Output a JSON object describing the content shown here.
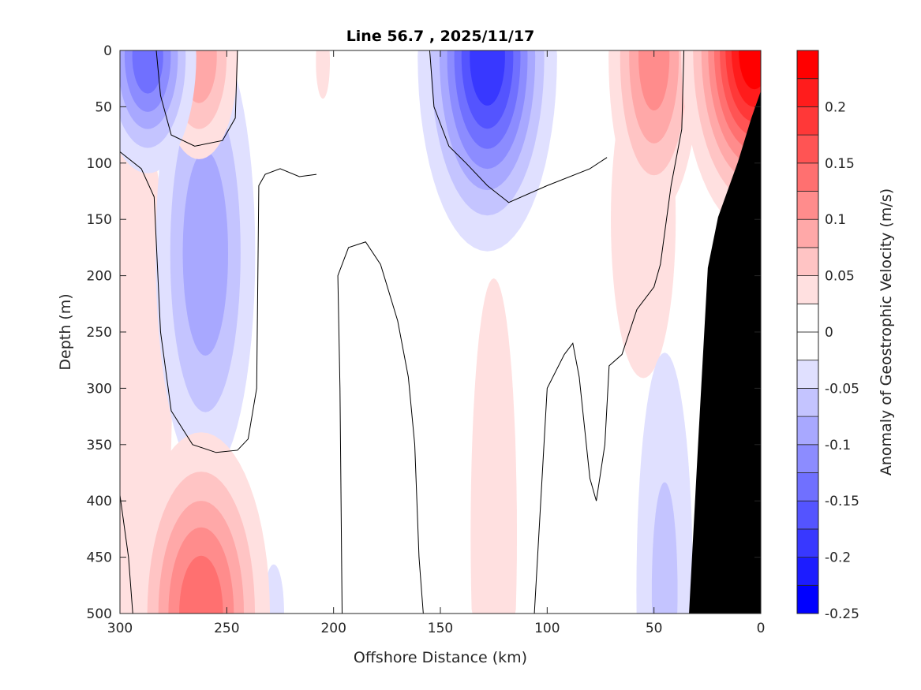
{
  "chart_data": {
    "type": "heatmap",
    "subtype": "filled-contour",
    "title": "Line 56.7 , 2025/11/17",
    "xlabel": "Offshore Distance (km)",
    "ylabel": "Depth (m)",
    "xlim": [
      300,
      0
    ],
    "ylim": [
      0,
      500
    ],
    "x_reversed": true,
    "y_reversed": true,
    "xticks": [
      "300",
      "250",
      "200",
      "150",
      "100",
      "50",
      "0"
    ],
    "yticks": [
      "0",
      "50",
      "100",
      "150",
      "200",
      "250",
      "300",
      "350",
      "400",
      "450",
      "500"
    ],
    "colorbar": {
      "label": "Anomaly of Geostrophic Velocity (m/s)",
      "range": [
        -0.25,
        0.25
      ],
      "step": 0.025,
      "ticks": [
        "0.2",
        "0.15",
        "0.1",
        "0.05",
        "0",
        "-0.05",
        "-0.1",
        "-0.15",
        "-0.2",
        "-0.25"
      ],
      "colormap": "blue-white-red",
      "positive_color": "#ff0000",
      "negative_color": "#0000ff"
    },
    "anomaly_cores": [
      {
        "x_km": 295,
        "depth_m": 300,
        "value": 0.04,
        "sx_km": 20,
        "sy_m": 260
      },
      {
        "x_km": 205,
        "depth_m": 10,
        "value": 0.035,
        "sx_km": 4,
        "sy_m": 40
      },
      {
        "x_km": 228,
        "depth_m": 500,
        "value": -0.04,
        "sx_km": 5,
        "sy_m": 45
      },
      {
        "x_km": 125,
        "depth_m": 430,
        "value": 0.045,
        "sx_km": 10,
        "sy_m": 210
      },
      {
        "x_km": 55,
        "depth_m": 150,
        "value": 0.045,
        "sx_km": 14,
        "sy_m": 130
      },
      {
        "x_km": 45,
        "depth_m": 480,
        "value": -0.06,
        "sx_km": 10,
        "sy_m": 160
      },
      {
        "x_km": 260,
        "depth_m": 180,
        "value": -0.1,
        "sx_km": 14,
        "sy_m": 120
      },
      {
        "x_km": 263,
        "depth_m": 5,
        "value": 0.1,
        "sx_km": 11,
        "sy_m": 55
      },
      {
        "x_km": 50,
        "depth_m": 5,
        "value": 0.12,
        "sx_km": 12,
        "sy_m": 80
      },
      {
        "x_km": 287,
        "depth_m": 5,
        "value": -0.15,
        "sx_km": 12,
        "sy_m": 55
      },
      {
        "x_km": 262,
        "depth_m": 500,
        "value": 0.15,
        "sx_km": 17,
        "sy_m": 85
      },
      {
        "x_km": 128,
        "depth_m": 5,
        "value": -0.2,
        "sx_km": 16,
        "sy_m": 85
      },
      {
        "x_km": 3,
        "depth_m": 0,
        "value": 0.25,
        "sx_km": 16,
        "sy_m": 75
      }
    ],
    "zero_contours": [
      [
        [
          300,
          90
        ],
        [
          290,
          105
        ],
        [
          284,
          130
        ],
        [
          281,
          250
        ],
        [
          276,
          320
        ],
        [
          266,
          350
        ],
        [
          255,
          357
        ],
        [
          245,
          355
        ],
        [
          240,
          345
        ],
        [
          236,
          300
        ],
        [
          235,
          120
        ],
        [
          232,
          110
        ],
        [
          225,
          105
        ],
        [
          216,
          112
        ],
        [
          208,
          110
        ]
      ],
      [
        [
          300,
          395
        ],
        [
          296,
          450
        ],
        [
          294,
          500
        ]
      ],
      [
        [
          196,
          500
        ],
        [
          197,
          300
        ],
        [
          198,
          200
        ],
        [
          193,
          175
        ],
        [
          185,
          170
        ],
        [
          178,
          190
        ],
        [
          170,
          240
        ],
        [
          165,
          290
        ],
        [
          162,
          350
        ],
        [
          160,
          450
        ],
        [
          158,
          500
        ]
      ],
      [
        [
          106,
          500
        ],
        [
          103,
          400
        ],
        [
          100,
          300
        ],
        [
          92,
          270
        ],
        [
          88,
          260
        ],
        [
          85,
          290
        ],
        [
          80,
          380
        ],
        [
          77,
          400
        ],
        [
          73,
          350
        ],
        [
          71,
          280
        ],
        [
          65,
          270
        ],
        [
          58,
          230
        ],
        [
          50,
          210
        ],
        [
          47,
          190
        ],
        [
          42,
          120
        ],
        [
          37,
          70
        ],
        [
          36,
          0
        ]
      ],
      [
        [
          155,
          0
        ],
        [
          153,
          50
        ],
        [
          146,
          85
        ],
        [
          138,
          100
        ],
        [
          128,
          120
        ],
        [
          118,
          135
        ],
        [
          100,
          120
        ],
        [
          80,
          105
        ],
        [
          72,
          95
        ]
      ],
      [
        [
          283,
          0
        ],
        [
          281,
          40
        ],
        [
          276,
          75
        ],
        [
          265,
          85
        ],
        [
          252,
          80
        ],
        [
          246,
          60
        ],
        [
          245,
          0
        ]
      ]
    ],
    "bathymetry": [
      [
        0,
        36
      ],
      [
        4.4,
        60
      ],
      [
        10.7,
        99
      ],
      [
        20,
        148
      ],
      [
        24.8,
        193
      ],
      [
        29,
        337
      ],
      [
        33.6,
        500
      ],
      [
        0,
        500
      ]
    ],
    "bathymetry_color": "#000000"
  }
}
